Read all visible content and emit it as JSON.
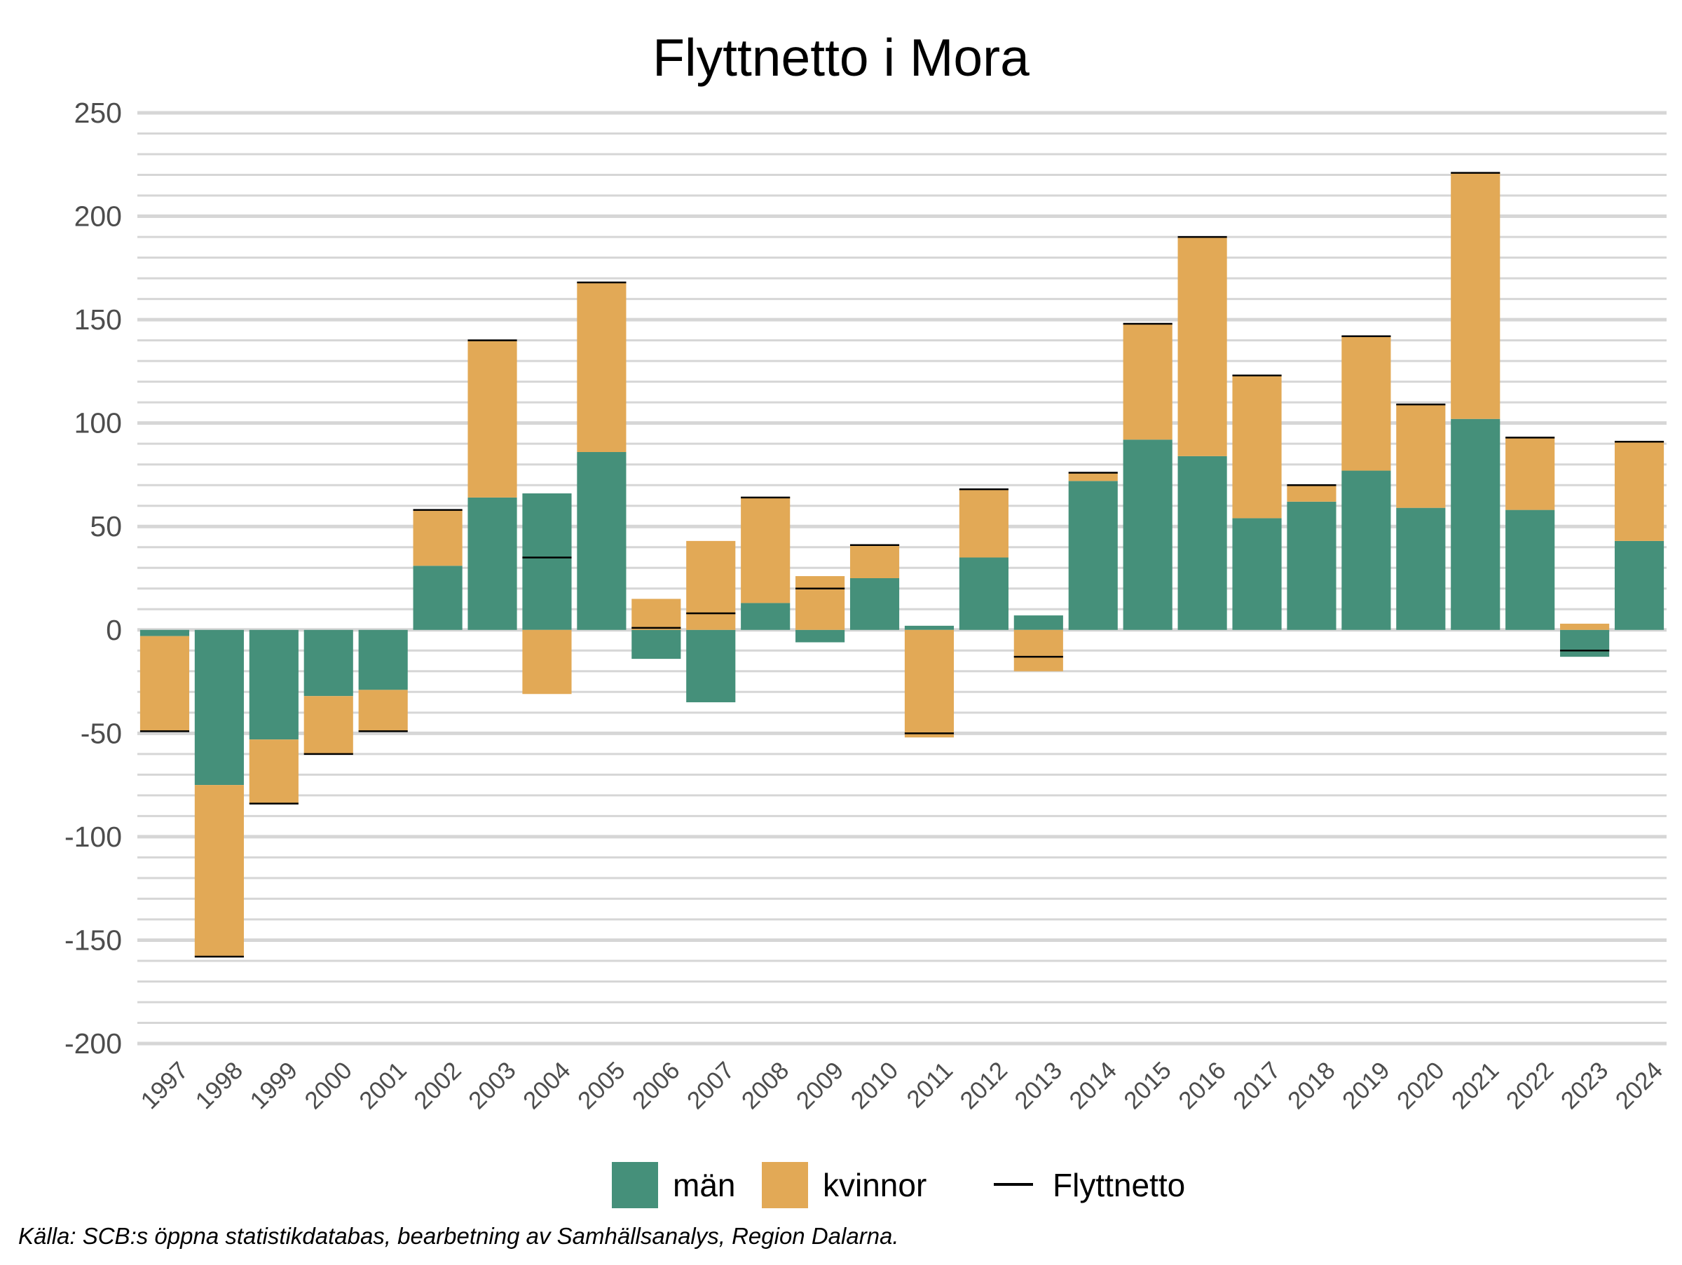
{
  "chart_data": {
    "type": "bar",
    "stacked": true,
    "title": "Flyttnetto i Mora",
    "xlabel": "",
    "ylabel": "",
    "ylim": [
      -200,
      250
    ],
    "yticks": [
      250,
      200,
      150,
      100,
      50,
      0,
      -50,
      -100,
      -150,
      -200
    ],
    "ytick_labels": [
      "250",
      "200",
      "150",
      "100",
      "50",
      "0",
      "-50",
      "-100",
      "-150",
      "-200"
    ],
    "minor_grid_step": 10,
    "grid": true,
    "legend_position": "bottom",
    "categories": [
      "1997",
      "1998",
      "1999",
      "2000",
      "2001",
      "2002",
      "2003",
      "2004",
      "2005",
      "2006",
      "2007",
      "2008",
      "2009",
      "2010",
      "2011",
      "2012",
      "2013",
      "2014",
      "2015",
      "2016",
      "2017",
      "2018",
      "2019",
      "2020",
      "2021",
      "2022",
      "2023",
      "2024"
    ],
    "series": [
      {
        "name": "män",
        "color": "#45907a",
        "values": [
          -3,
          -75,
          -53,
          -32,
          -29,
          31,
          64,
          66,
          86,
          -14,
          -35,
          13,
          -6,
          25,
          2,
          35,
          7,
          72,
          92,
          84,
          54,
          62,
          77,
          59,
          102,
          58,
          -13,
          43
        ]
      },
      {
        "name": "kvinnor",
        "color": "#e2a956",
        "values": [
          -46,
          -83,
          -31,
          -28,
          -20,
          27,
          76,
          -31,
          82,
          15,
          43,
          51,
          26,
          16,
          -52,
          33,
          -20,
          4,
          56,
          106,
          69,
          8,
          65,
          50,
          119,
          35,
          3,
          48
        ]
      }
    ],
    "net": {
      "name": "Flyttnetto",
      "color": "#000000",
      "values": [
        -49,
        -158,
        -84,
        -60,
        -49,
        58,
        140,
        35,
        168,
        1,
        8,
        64,
        20,
        41,
        -50,
        68,
        -13,
        76,
        148,
        190,
        123,
        70,
        142,
        109,
        221,
        93,
        -10,
        91
      ]
    },
    "caption": "Källa: SCB:s öppna statistikdatabas, bearbetning av Samhällsanalys, Region Dalarna."
  }
}
